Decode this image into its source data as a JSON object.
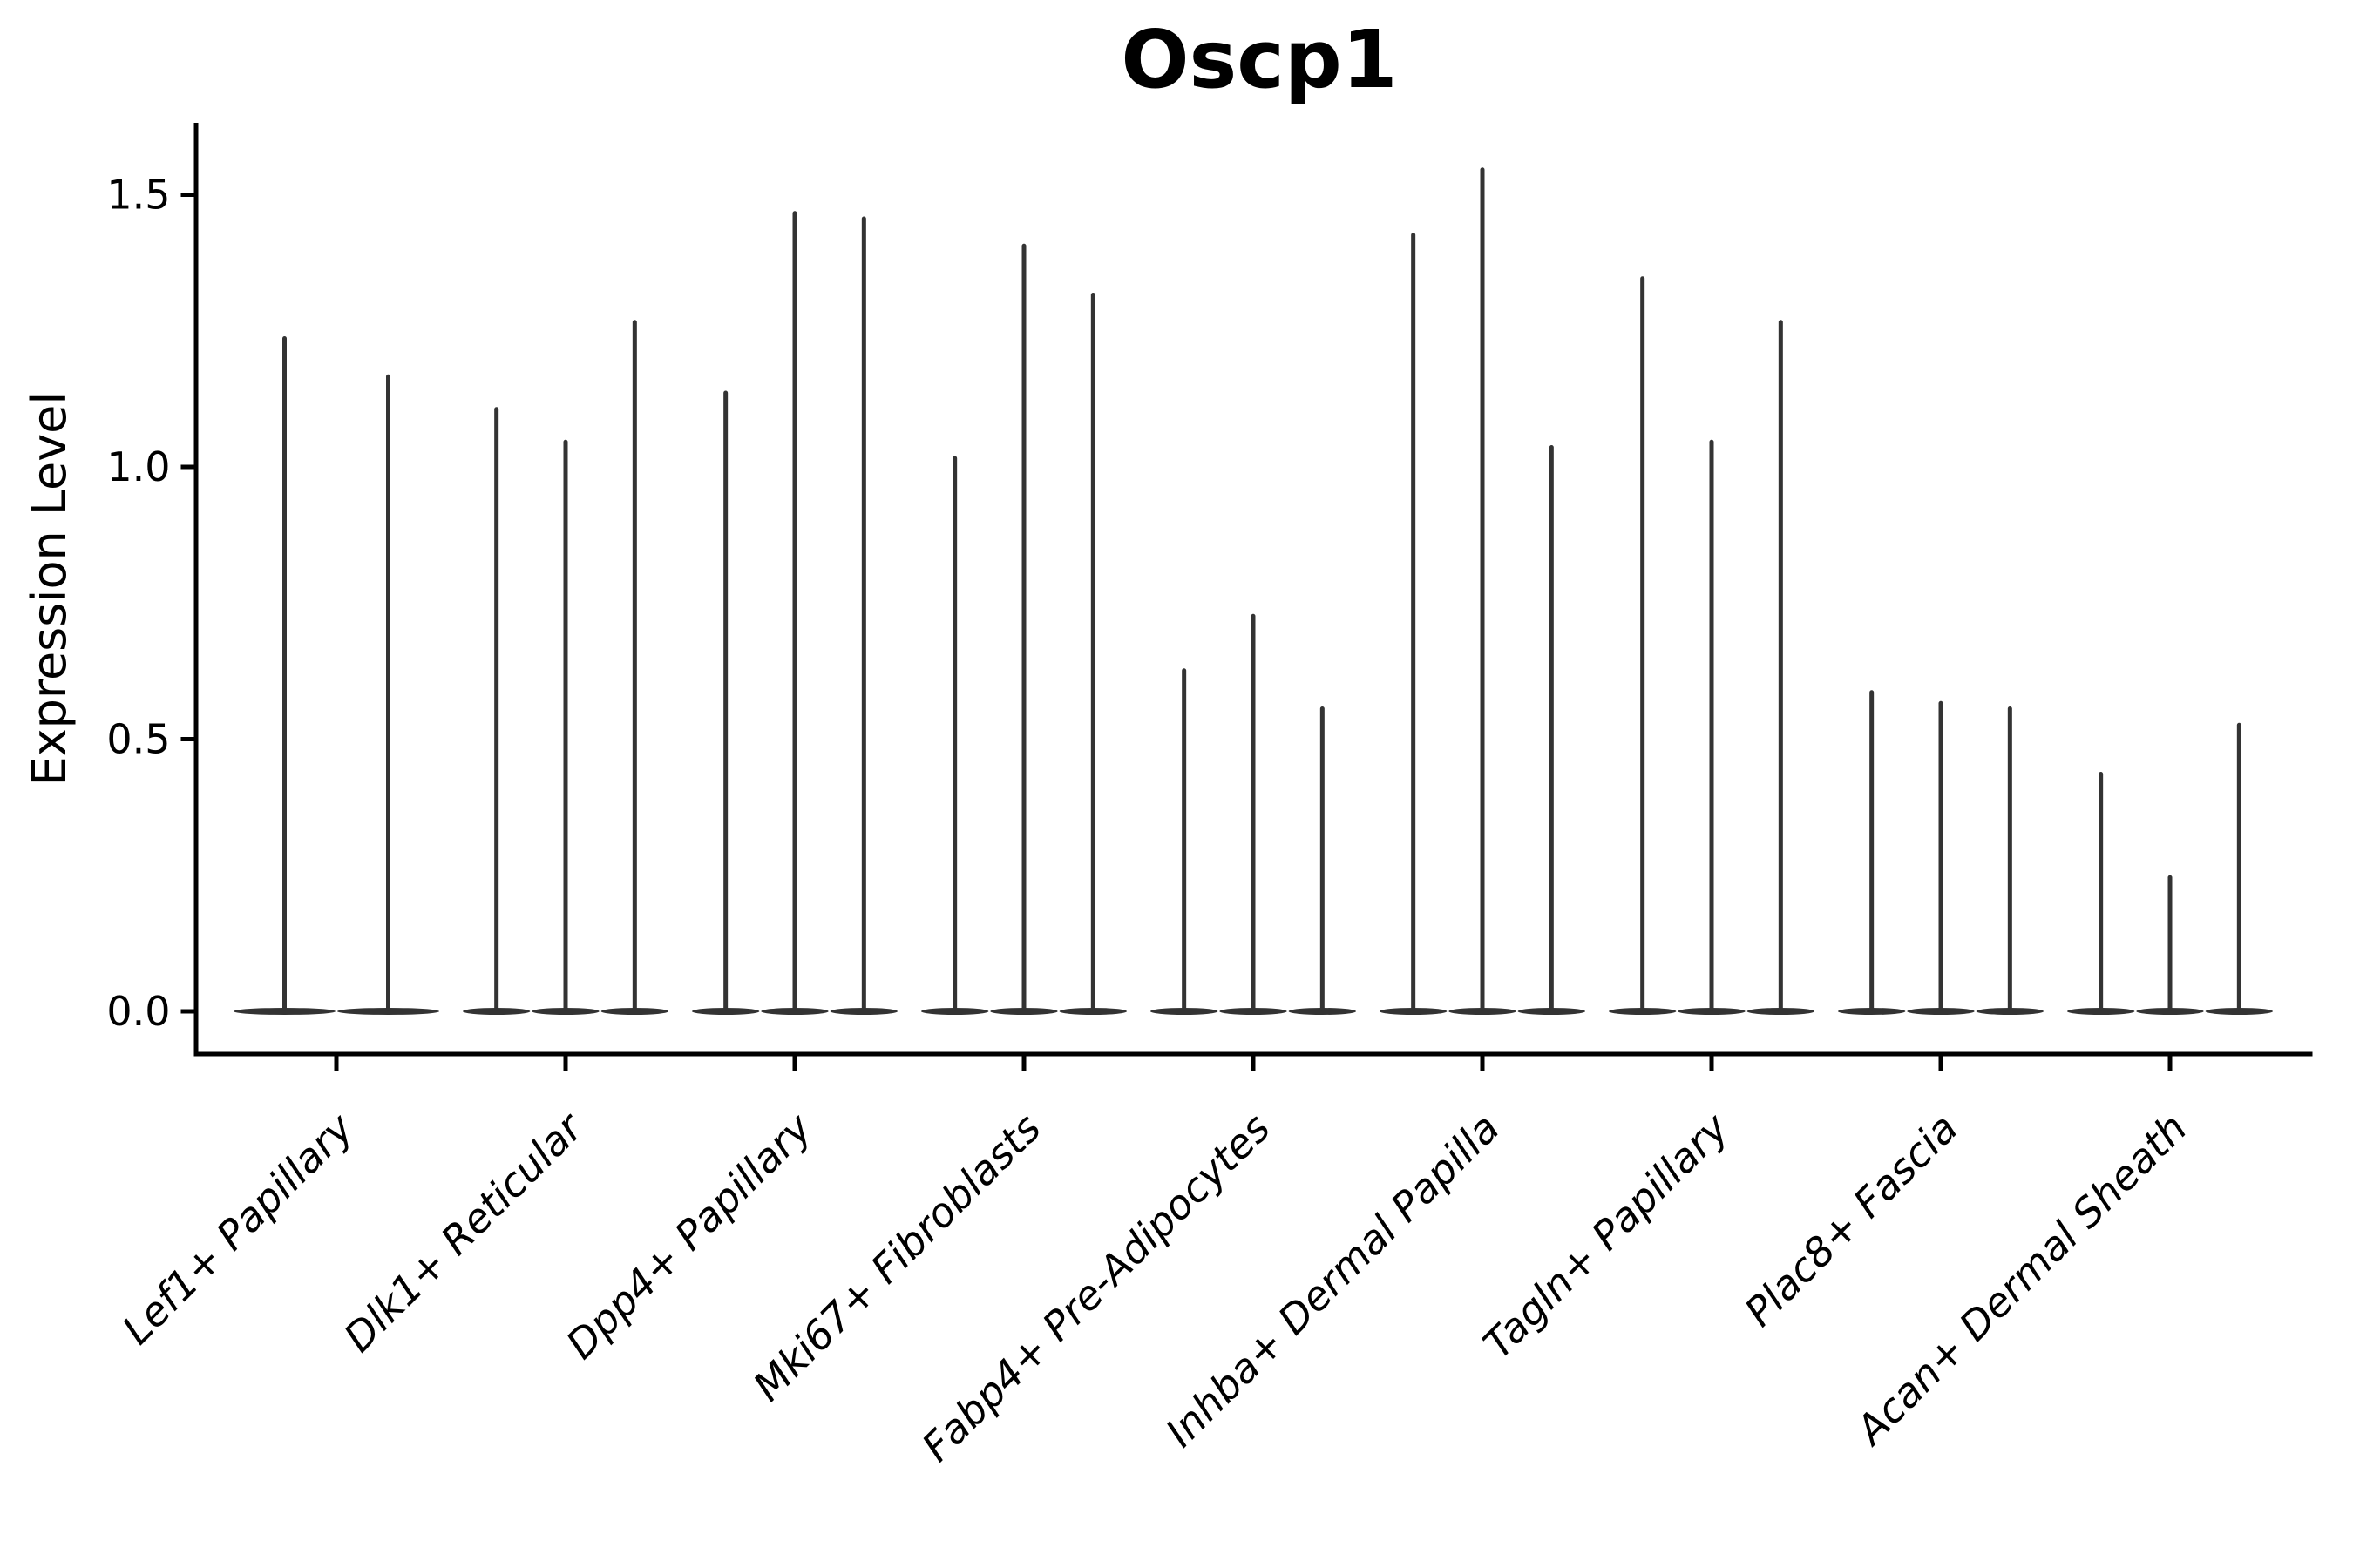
{
  "page": {
    "background_color": "#ffffff",
    "text_color": "#000000"
  },
  "chart_data": {
    "type": "violin",
    "title": "Oscp1",
    "ylabel": "Expression Level",
    "xlabel": "",
    "ylim": [
      -0.08,
      1.65
    ],
    "yticks": [
      0.0,
      0.5,
      1.0,
      1.5
    ],
    "ytick_labels": [
      "0.0",
      "0.5",
      "1.0",
      "1.5"
    ],
    "grid": false,
    "legend": "none",
    "violin_color": "#333333",
    "axis_color": "#000000",
    "note": "Seurat-style violin plot; each category holds narrow spike-shaped violins (max expression values listed per violin, left to right)",
    "categories": [
      {
        "label": "Lef1+ Papillary",
        "violin_maxima": [
          1.24,
          1.17
        ]
      },
      {
        "label": "Dlk1+ Reticular",
        "violin_maxima": [
          1.11,
          1.05,
          1.27
        ]
      },
      {
        "label": "Dpp4+ Papillary",
        "violin_maxima": [
          1.14,
          1.47,
          1.46
        ]
      },
      {
        "label": "Mki67+ Fibroblasts",
        "violin_maxima": [
          1.02,
          1.41,
          1.32
        ]
      },
      {
        "label": "Fabp4+ Pre-Adipocytes",
        "violin_maxima": [
          0.63,
          0.73,
          0.56
        ]
      },
      {
        "label": "Inhba+ Dermal Papilla",
        "violin_maxima": [
          1.43,
          1.55,
          1.04
        ]
      },
      {
        "label": "Tagln+ Papillary",
        "violin_maxima": [
          1.35,
          1.05,
          1.27
        ]
      },
      {
        "label": "Plac8+ Fascia",
        "violin_maxima": [
          0.59,
          0.57,
          0.56
        ]
      },
      {
        "label": "Acan+ Dermal Sheath",
        "violin_maxima": [
          0.44,
          0.25,
          0.53
        ]
      }
    ]
  }
}
